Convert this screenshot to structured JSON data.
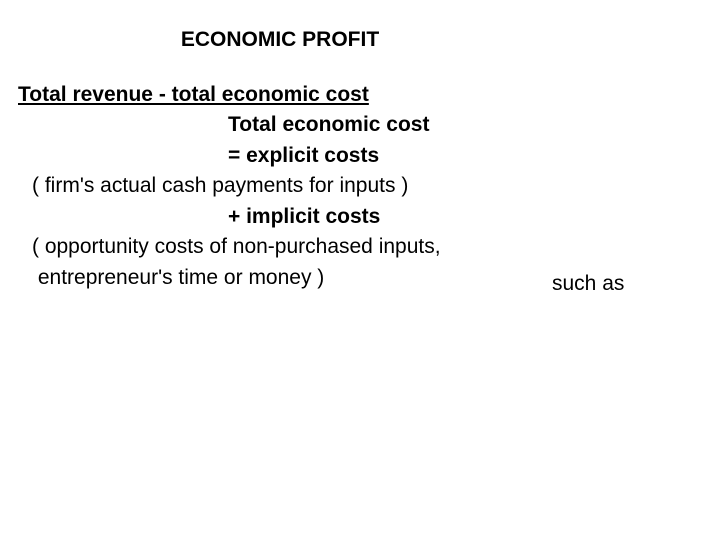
{
  "title": "ECONOMIC PROFIT",
  "lines": {
    "formula": "Total revenue - total economic cost",
    "totalEconomicCost": "Total economic cost",
    "explicitCosts": "= explicit costs",
    "explicitExplanation": "( firm's actual cash payments for inputs )",
    "implicitCosts": "+ implicit costs",
    "implicitExplanation1": "( opportunity costs of non-purchased inputs,",
    "implicitExplanation2": " entrepreneur's time or money )",
    "suchAs": "such as"
  },
  "colors": {
    "background": "#ffffff",
    "text": "#000000"
  },
  "typography": {
    "fontFamily": "Arial",
    "titleFontSize": 21,
    "bodyFontSize": 21,
    "titleWeight": "bold",
    "formulaWeight": "bold",
    "subheadingWeight": "bold"
  }
}
